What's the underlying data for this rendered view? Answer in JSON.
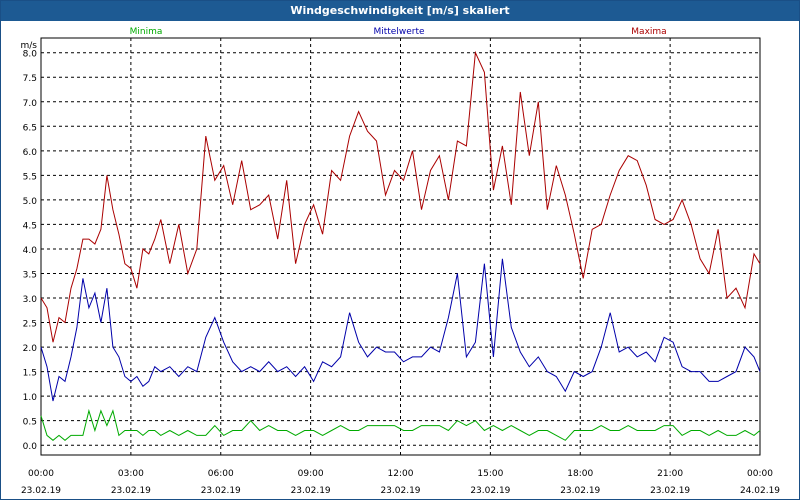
{
  "window": {
    "title": "Windgeschwindigkeit [m/s] skaliert"
  },
  "chart_data": {
    "type": "line",
    "title": "Windgeschwindigkeit [m/s] skaliert",
    "ylabel": "m/s",
    "ylim": [
      -0.2,
      8.3
    ],
    "y_ticks": [
      "0.0",
      "0.5",
      "1.0",
      "1.5",
      "2.0",
      "2.5",
      "3.0",
      "3.5",
      "4.0",
      "4.5",
      "5.0",
      "5.5",
      "6.0",
      "6.5",
      "7.0",
      "7.5",
      "8.0"
    ],
    "x_ticks": [
      {
        "time": "00:00",
        "date": "23.02.19"
      },
      {
        "time": "03:00",
        "date": "23.02.19"
      },
      {
        "time": "06:00",
        "date": "23.02.19"
      },
      {
        "time": "09:00",
        "date": "23.02.19"
      },
      {
        "time": "12:00",
        "date": "23.02.19"
      },
      {
        "time": "15:00",
        "date": "23.02.19"
      },
      {
        "time": "18:00",
        "date": "23.02.19"
      },
      {
        "time": "21:00",
        "date": "23.02.19"
      },
      {
        "time": "00:00",
        "date": "24.02.19"
      }
    ],
    "x_unit": "hours since 23.02.19 00:00",
    "xlim": [
      0,
      24
    ],
    "grid": true,
    "legend_position": "top",
    "series": [
      {
        "name": "Minima",
        "color": "#00aa00",
        "x": [
          0,
          0.2,
          0.4,
          0.6,
          0.8,
          1,
          1.2,
          1.4,
          1.6,
          1.8,
          2,
          2.2,
          2.4,
          2.6,
          2.8,
          3,
          3.2,
          3.4,
          3.6,
          3.8,
          4,
          4.3,
          4.6,
          4.9,
          5.2,
          5.5,
          5.8,
          6.1,
          6.4,
          6.7,
          7,
          7.3,
          7.6,
          7.9,
          8.2,
          8.5,
          8.8,
          9.1,
          9.4,
          9.7,
          10,
          10.3,
          10.6,
          10.9,
          11.2,
          11.5,
          11.8,
          12.1,
          12.4,
          12.7,
          13,
          13.3,
          13.6,
          13.9,
          14.2,
          14.5,
          14.8,
          15.1,
          15.4,
          15.7,
          16,
          16.3,
          16.6,
          16.9,
          17.2,
          17.5,
          17.8,
          18.1,
          18.4,
          18.7,
          19,
          19.3,
          19.6,
          19.9,
          20.2,
          20.5,
          20.8,
          21.1,
          21.4,
          21.7,
          22,
          22.3,
          22.6,
          22.9,
          23.2,
          23.5,
          23.8,
          24
        ],
        "y": [
          0.6,
          0.2,
          0.1,
          0.2,
          0.1,
          0.2,
          0.2,
          0.2,
          0.7,
          0.3,
          0.7,
          0.4,
          0.7,
          0.2,
          0.3,
          0.3,
          0.3,
          0.2,
          0.3,
          0.3,
          0.2,
          0.3,
          0.2,
          0.3,
          0.2,
          0.2,
          0.4,
          0.2,
          0.3,
          0.3,
          0.5,
          0.3,
          0.4,
          0.3,
          0.3,
          0.2,
          0.3,
          0.3,
          0.2,
          0.3,
          0.4,
          0.3,
          0.3,
          0.4,
          0.4,
          0.4,
          0.4,
          0.3,
          0.3,
          0.4,
          0.4,
          0.4,
          0.3,
          0.5,
          0.4,
          0.5,
          0.3,
          0.4,
          0.3,
          0.4,
          0.3,
          0.2,
          0.3,
          0.3,
          0.2,
          0.1,
          0.3,
          0.3,
          0.3,
          0.4,
          0.3,
          0.3,
          0.4,
          0.3,
          0.3,
          0.3,
          0.4,
          0.4,
          0.2,
          0.3,
          0.3,
          0.2,
          0.3,
          0.2,
          0.2,
          0.3,
          0.2,
          0.3
        ]
      },
      {
        "name": "Mittelwerte",
        "color": "#0000aa",
        "x": [
          0,
          0.2,
          0.4,
          0.6,
          0.8,
          1,
          1.2,
          1.4,
          1.6,
          1.8,
          2,
          2.2,
          2.4,
          2.6,
          2.8,
          3,
          3.2,
          3.4,
          3.6,
          3.8,
          4,
          4.3,
          4.6,
          4.9,
          5.2,
          5.5,
          5.8,
          6.1,
          6.4,
          6.7,
          7,
          7.3,
          7.6,
          7.9,
          8.2,
          8.5,
          8.8,
          9.1,
          9.4,
          9.7,
          10,
          10.3,
          10.6,
          10.9,
          11.2,
          11.5,
          11.8,
          12.1,
          12.4,
          12.7,
          13,
          13.3,
          13.6,
          13.9,
          14.2,
          14.5,
          14.8,
          15.1,
          15.4,
          15.7,
          16,
          16.3,
          16.6,
          16.9,
          17.2,
          17.5,
          17.8,
          18.1,
          18.4,
          18.7,
          19,
          19.3,
          19.6,
          19.9,
          20.2,
          20.5,
          20.8,
          21.1,
          21.4,
          21.7,
          22,
          22.3,
          22.6,
          22.9,
          23.2,
          23.5,
          23.8,
          24
        ],
        "y": [
          2.0,
          1.6,
          0.9,
          1.4,
          1.3,
          1.8,
          2.4,
          3.4,
          2.8,
          3.1,
          2.5,
          3.2,
          2.0,
          1.8,
          1.4,
          1.3,
          1.4,
          1.2,
          1.3,
          1.6,
          1.5,
          1.6,
          1.4,
          1.6,
          1.5,
          2.2,
          2.6,
          2.1,
          1.7,
          1.5,
          1.6,
          1.5,
          1.7,
          1.5,
          1.6,
          1.4,
          1.6,
          1.3,
          1.7,
          1.6,
          1.8,
          2.7,
          2.1,
          1.8,
          2.0,
          1.9,
          1.9,
          1.7,
          1.8,
          1.8,
          2.0,
          1.9,
          2.6,
          3.5,
          1.8,
          2.1,
          3.7,
          1.8,
          3.8,
          2.4,
          1.9,
          1.6,
          1.8,
          1.5,
          1.4,
          1.1,
          1.5,
          1.4,
          1.5,
          2.0,
          2.7,
          1.9,
          2.0,
          1.8,
          1.9,
          1.7,
          2.2,
          2.1,
          1.6,
          1.5,
          1.5,
          1.3,
          1.3,
          1.4,
          1.5,
          2.0,
          1.8,
          1.5
        ]
      },
      {
        "name": "Maxima",
        "color": "#aa0000",
        "x": [
          0,
          0.2,
          0.4,
          0.6,
          0.8,
          1,
          1.2,
          1.4,
          1.6,
          1.8,
          2,
          2.2,
          2.4,
          2.6,
          2.8,
          3,
          3.2,
          3.4,
          3.6,
          3.8,
          4,
          4.3,
          4.6,
          4.9,
          5.2,
          5.5,
          5.8,
          6.1,
          6.4,
          6.7,
          7,
          7.3,
          7.6,
          7.9,
          8.2,
          8.5,
          8.8,
          9.1,
          9.4,
          9.7,
          10,
          10.3,
          10.6,
          10.9,
          11.2,
          11.5,
          11.8,
          12.1,
          12.4,
          12.7,
          13,
          13.3,
          13.6,
          13.9,
          14.2,
          14.5,
          14.8,
          15.1,
          15.4,
          15.7,
          16,
          16.3,
          16.6,
          16.9,
          17.2,
          17.5,
          17.8,
          18.1,
          18.4,
          18.7,
          19,
          19.3,
          19.6,
          19.9,
          20.2,
          20.5,
          20.8,
          21.1,
          21.4,
          21.7,
          22,
          22.3,
          22.6,
          22.9,
          23.2,
          23.5,
          23.8,
          24
        ],
        "y": [
          3.0,
          2.8,
          2.1,
          2.6,
          2.5,
          3.2,
          3.6,
          4.2,
          4.2,
          4.1,
          4.4,
          5.5,
          4.8,
          4.3,
          3.7,
          3.6,
          3.2,
          4.0,
          3.9,
          4.2,
          4.6,
          3.7,
          4.5,
          3.5,
          4.0,
          6.3,
          5.4,
          5.7,
          4.9,
          5.8,
          4.8,
          4.9,
          5.1,
          4.2,
          5.4,
          3.7,
          4.5,
          4.9,
          4.3,
          5.6,
          5.4,
          6.3,
          6.8,
          6.4,
          6.2,
          5.1,
          5.6,
          5.4,
          6.0,
          4.8,
          5.6,
          5.9,
          5.0,
          6.2,
          6.1,
          8.0,
          7.6,
          5.2,
          6.1,
          4.9,
          7.2,
          5.9,
          7.0,
          4.8,
          5.7,
          5.1,
          4.3,
          3.4,
          4.4,
          4.5,
          5.1,
          5.6,
          5.9,
          5.8,
          5.3,
          4.6,
          4.5,
          4.6,
          5.0,
          4.5,
          3.8,
          3.5,
          4.4,
          3.0,
          3.2,
          2.8,
          3.9,
          3.7
        ]
      }
    ]
  }
}
